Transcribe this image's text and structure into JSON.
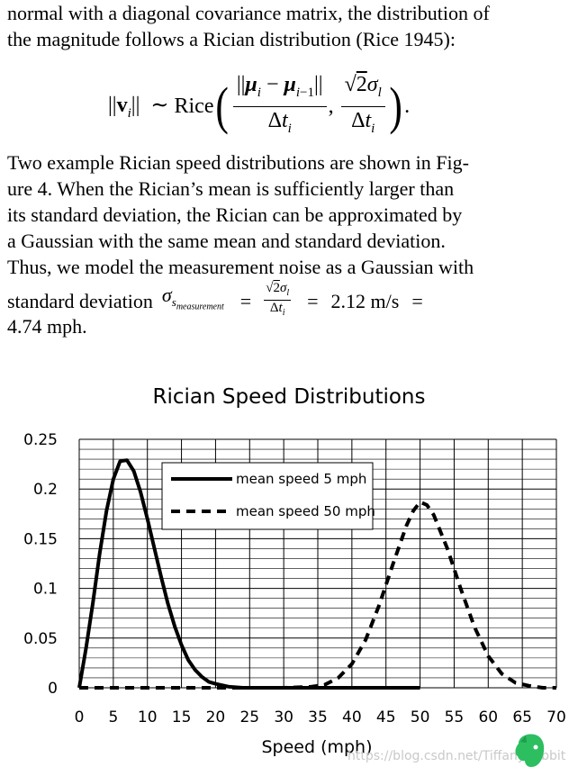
{
  "text": {
    "line1": "normal with a diagonal covariance matrix, the distribution of",
    "line2": "the magnitude follows a Rician distribution (Rice 1945):",
    "para2": [
      "Two example Rician speed distributions are shown in Fig-",
      "ure 4. When the Rician’s mean is sufficiently larger than",
      "its standard deviation, the Rician can be approximated by",
      "a Gaussian with the same mean and standard deviation.",
      "Thus, we model the measurement noise as a Gaussian with"
    ],
    "stddev_prefix": "standard deviation",
    "stddev_value": "2.12 m/s",
    "last_line": "4.74 mph."
  },
  "equation": {
    "lhs": "||v",
    "rice": "Rice"
  },
  "chart_data": {
    "type": "line",
    "title": "Rician Speed Distributions",
    "xlabel": "Speed (mph)",
    "ylabel": "",
    "xlim": [
      0,
      70
    ],
    "ylim": [
      0,
      0.25
    ],
    "xticks": [
      "0",
      "5",
      "10",
      "15",
      "20",
      "25",
      "30",
      "35",
      "40",
      "45",
      "50",
      "55",
      "60",
      "65",
      "70"
    ],
    "yticks": [
      "0",
      "0.05",
      "0.1",
      "0.15",
      "0.2",
      "0.25"
    ],
    "grid": true,
    "legend_position": "top-center",
    "series": [
      {
        "name": "mean speed 5 mph",
        "style": "solid",
        "x": [
          0,
          1,
          2,
          3,
          4,
          5,
          6,
          7,
          8,
          9,
          10,
          11,
          12,
          13,
          14,
          15,
          16,
          17,
          18,
          19,
          20,
          22,
          24,
          26,
          30,
          35,
          40,
          45,
          50
        ],
        "y": [
          0,
          0.04,
          0.085,
          0.135,
          0.178,
          0.21,
          0.228,
          0.229,
          0.218,
          0.197,
          0.17,
          0.141,
          0.112,
          0.085,
          0.062,
          0.043,
          0.028,
          0.018,
          0.011,
          0.006,
          0.004,
          0.001,
          0.0,
          0.0,
          0,
          0,
          0,
          0,
          0
        ]
      },
      {
        "name": "mean speed 50 mph",
        "style": "dashed",
        "x": [
          0,
          30,
          34,
          36,
          38,
          40,
          42,
          44,
          46,
          48,
          49,
          50,
          51,
          52,
          54,
          56,
          58,
          60,
          62,
          64,
          66,
          68,
          70
        ],
        "y": [
          0,
          0,
          0.001,
          0.003,
          0.01,
          0.024,
          0.048,
          0.083,
          0.124,
          0.163,
          0.178,
          0.187,
          0.184,
          0.174,
          0.14,
          0.099,
          0.061,
          0.032,
          0.014,
          0.005,
          0.002,
          0.0,
          0.0
        ]
      }
    ]
  },
  "watermark": "https://blog.csdn.net/TiffanyRabbit"
}
